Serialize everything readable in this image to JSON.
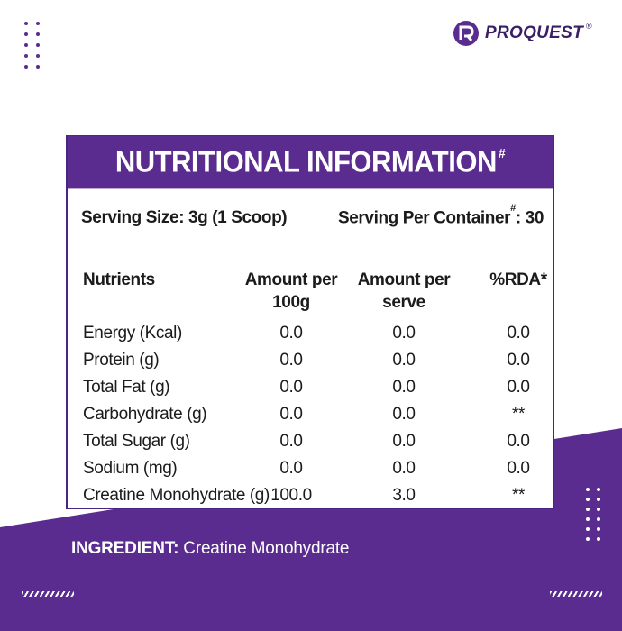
{
  "colors": {
    "brand": "#5b2c8f",
    "brand_dark": "#3a1f66",
    "text": "#1b1b1b",
    "background": "#ffffff"
  },
  "brand": {
    "name": "PROQUEST",
    "reg": "®",
    "logo_icon": "pq-logo-icon"
  },
  "panel": {
    "title": "NUTRITIONAL INFORMATION",
    "title_mark": "#",
    "serving_size": "Serving Size: 3g (1 Scoop)",
    "serving_per_container_label": "Serving Per Container",
    "serving_per_container_mark": "#",
    "serving_per_container_value": ": 30",
    "columns": {
      "nutrients": "Nutrients",
      "amount_100g_line1": "Amount per",
      "amount_100g_line2": "100g",
      "amount_serve_line1": "Amount per",
      "amount_serve_line2": "serve",
      "rda": "%RDA*"
    },
    "rows": [
      {
        "name": "Energy (Kcal)",
        "per100": "0.0",
        "perServe": "0.0",
        "rda": "0.0"
      },
      {
        "name": "Protein (g)",
        "per100": "0.0",
        "perServe": "0.0",
        "rda": "0.0"
      },
      {
        "name": "Total Fat (g)",
        "per100": "0.0",
        "perServe": "0.0",
        "rda": "0.0"
      },
      {
        "name": "Carbohydrate (g)",
        "per100": "0.0",
        "perServe": "0.0",
        "rda": "**"
      },
      {
        "name": "Total Sugar (g)",
        "per100": "0.0",
        "perServe": "0.0",
        "rda": "0.0"
      },
      {
        "name": "Sodium (mg)",
        "per100": "0.0",
        "perServe": "0.0",
        "rda": "0.0"
      },
      {
        "name": "Creatine Monohydrate (g)",
        "per100": "100.0",
        "perServe": "3.0",
        "rda": "**"
      }
    ]
  },
  "ingredient": {
    "label": "INGREDIENT:",
    "value": "Creatine Monohydrate"
  }
}
